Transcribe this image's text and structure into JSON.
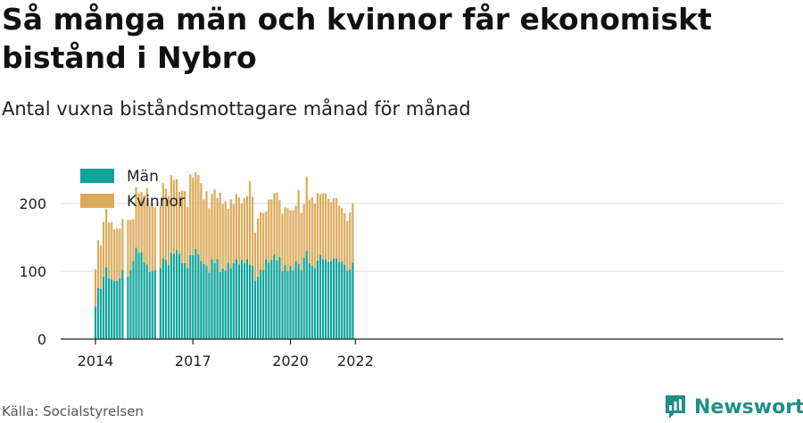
{
  "header": {
    "title": "Så många män och kvinnor får ekonomiskt bistånd i Nybro",
    "subtitle": "Antal vuxna biståndsmottagare månad för månad"
  },
  "footer": {
    "source": "Källa: Socialstyrelsen",
    "brand": "Newsworthy"
  },
  "colors": {
    "man": "#0fa39a",
    "kvinna": "#dbab5a",
    "grid": "#dddddd",
    "axis": "#222222"
  },
  "chart_data": {
    "type": "bar",
    "stacked": true,
    "x_start": "2014-01",
    "x_unit": "month",
    "xticks": [
      {
        "label": "2014",
        "x": "2014-01"
      },
      {
        "label": "2017",
        "x": "2017-01"
      },
      {
        "label": "2020",
        "x": "2020-01"
      },
      {
        "label": "2022",
        "x": "2022-01"
      }
    ],
    "ylim": [
      0,
      250
    ],
    "yticks": [
      0,
      100,
      200
    ],
    "grid": true,
    "legend_position": "top-left",
    "series": [
      {
        "name": "Män",
        "color": "#0fa39a",
        "values": [
          48,
          75,
          74,
          92,
          106,
          90,
          88,
          86,
          86,
          90,
          102,
          null,
          92,
          102,
          115,
          135,
          127,
          128,
          113,
          110,
          99,
          101,
          102,
          null,
          105,
          119,
          117,
          109,
          127,
          126,
          131,
          126,
          112,
          112,
          105,
          124,
          124,
          133,
          125,
          115,
          111,
          108,
          98,
          118,
          112,
          118,
          99,
          104,
          101,
          113,
          104,
          112,
          118,
          110,
          117,
          112,
          118,
          110,
          108,
          86,
          92,
          102,
          102,
          118,
          113,
          117,
          125,
          116,
          121,
          100,
          109,
          100,
          108,
          101,
          115,
          111,
          102,
          120,
          130,
          112,
          108,
          105,
          116,
          124,
          118,
          118,
          114,
          115,
          119,
          119,
          114,
          114,
          110,
          101,
          103,
          113
        ]
      },
      {
        "name": "Kvinnor",
        "color": "#dbab5a",
        "values": [
          55,
          71,
          64,
          81,
          86,
          82,
          84,
          76,
          77,
          73,
          75,
          null,
          84,
          74,
          62,
          89,
          88,
          89,
          99,
          113,
          97,
          99,
          92,
          null,
          91,
          111,
          105,
          102,
          115,
          109,
          105,
          91,
          107,
          106,
          90,
          119,
          114,
          113,
          117,
          115,
          95,
          110,
          95,
          96,
          109,
          90,
          117,
          95,
          102,
          79,
          102,
          87,
          96,
          99,
          83,
          96,
          93,
          123,
          102,
          71,
          86,
          85,
          84,
          70,
          93,
          89,
          90,
          100,
          84,
          85,
          85,
          93,
          82,
          89,
          82,
          109,
          84,
          79,
          110,
          94,
          101,
          95,
          99,
          90,
          97,
          97,
          93,
          87,
          89,
          89,
          83,
          79,
          76,
          73,
          84,
          87
        ]
      }
    ]
  }
}
